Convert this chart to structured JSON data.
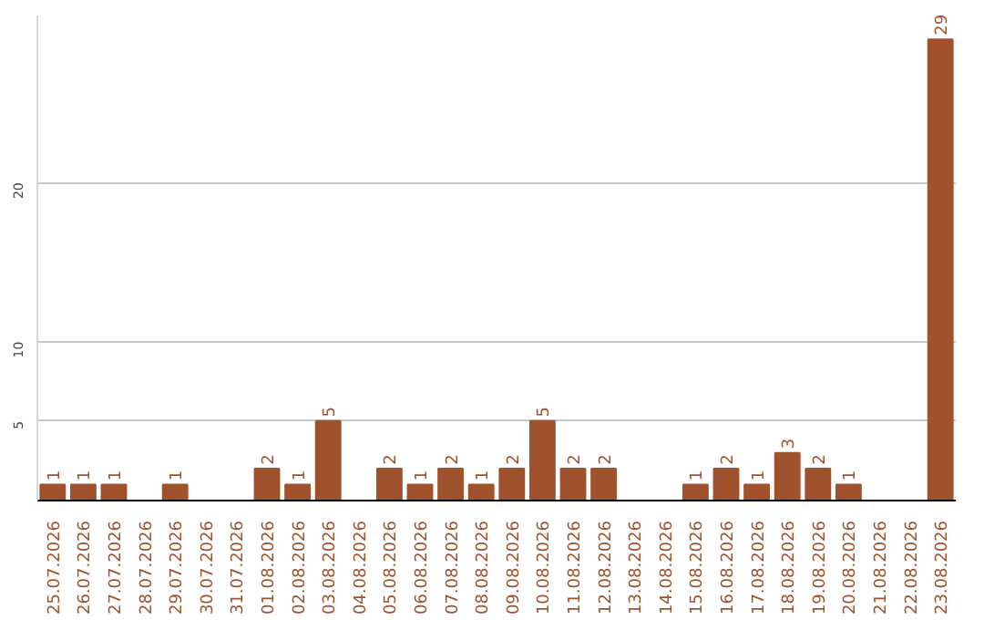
{
  "chart_data": {
    "type": "bar",
    "categories": [
      "25.07.2026",
      "26.07.2026",
      "27.07.2026",
      "28.07.2026",
      "29.07.2026",
      "30.07.2026",
      "31.07.2026",
      "01.08.2026",
      "02.08.2026",
      "03.08.2026",
      "04.08.2026",
      "05.08.2026",
      "06.08.2026",
      "07.08.2026",
      "08.08.2026",
      "09.08.2026",
      "10.08.2026",
      "11.08.2026",
      "12.08.2026",
      "13.08.2026",
      "14.08.2026",
      "15.08.2026",
      "16.08.2026",
      "17.08.2026",
      "18.08.2026",
      "19.08.2026",
      "20.08.2026",
      "21.08.2026",
      "22.08.2026",
      "23.08.2026"
    ],
    "values": [
      1,
      1,
      1,
      null,
      1,
      null,
      null,
      2,
      1,
      5,
      null,
      2,
      1,
      2,
      1,
      2,
      5,
      2,
      2,
      null,
      null,
      1,
      2,
      1,
      3,
      2,
      1,
      null,
      null,
      29
    ],
    "color": "#a0522d",
    "ylim": [
      0,
      30.5
    ],
    "yticks": [
      5,
      10,
      20
    ],
    "grid": "y",
    "data_labels": true
  }
}
